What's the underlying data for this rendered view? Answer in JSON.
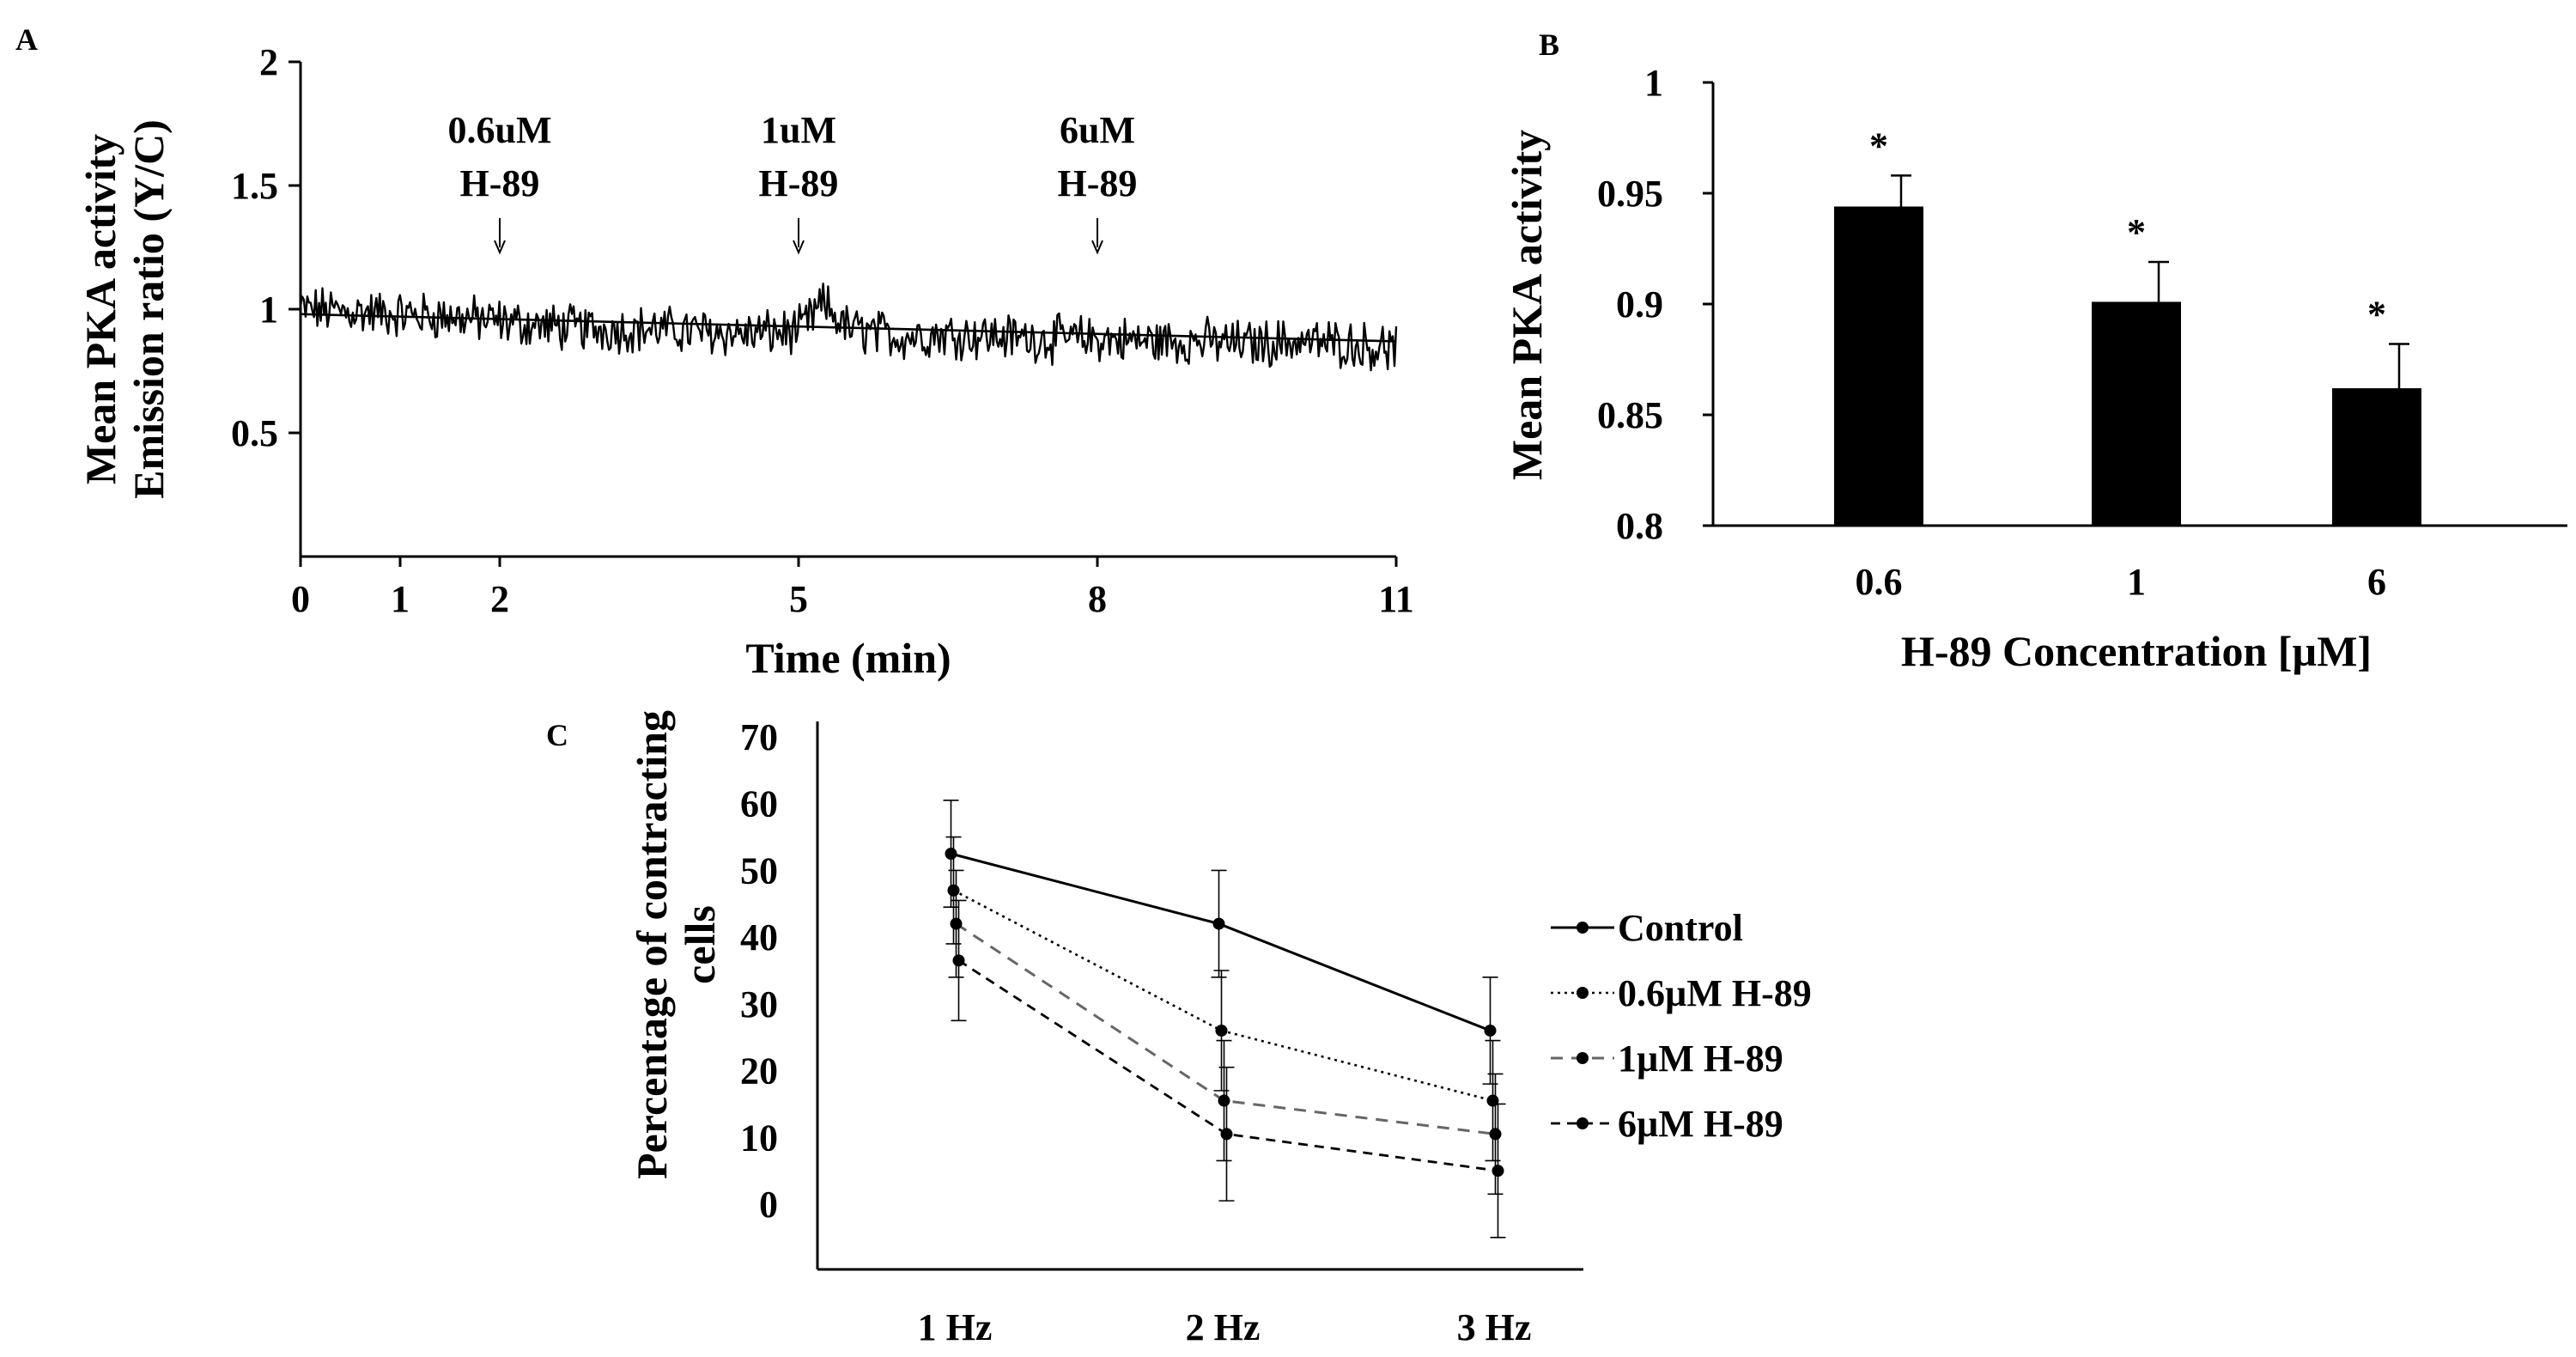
{
  "chart_data": [
    {
      "panel": "A",
      "type": "line",
      "xlabel": "Time (min)",
      "ylabel": [
        "Mean PKA activity",
        "Emission ratio (Y/C)"
      ],
      "xlim": [
        0,
        11
      ],
      "ylim": [
        0,
        2
      ],
      "xticks": [
        0,
        1,
        2,
        5,
        8,
        11
      ],
      "yticks": [
        0.5,
        1,
        1.5,
        2
      ],
      "series": [
        {
          "name": "Emission ratio trace",
          "x": [
            0,
            0.5,
            1,
            1.5,
            2,
            2.5,
            3,
            3.5,
            4,
            4.5,
            5,
            5.25,
            5.5,
            6,
            6.5,
            7,
            7.5,
            8,
            8.5,
            9,
            9.5,
            10,
            10.5,
            11
          ],
          "y": [
            1.0,
            0.99,
            0.98,
            0.97,
            0.95,
            0.93,
            0.92,
            0.92,
            0.91,
            0.9,
            0.91,
            1.02,
            0.92,
            0.89,
            0.9,
            0.89,
            0.88,
            0.88,
            0.87,
            0.87,
            0.86,
            0.87,
            0.86,
            0.84
          ]
        },
        {
          "name": "Trend line",
          "x": [
            0,
            11
          ],
          "y": [
            0.98,
            0.87
          ]
        }
      ],
      "annotations": [
        {
          "x": 2,
          "lines": [
            "0.6uM",
            "H-89"
          ]
        },
        {
          "x": 5,
          "lines": [
            "1uM",
            "H-89"
          ]
        },
        {
          "x": 8,
          "lines": [
            "6uM",
            "H-89"
          ]
        }
      ]
    },
    {
      "panel": "B",
      "type": "bar",
      "xlabel": "H-89 Concentration [µM]",
      "ylabel": "Mean PKA activity",
      "categories": [
        "0.6",
        "1",
        "6"
      ],
      "values": [
        0.944,
        0.901,
        0.862
      ],
      "errors": [
        0.014,
        0.018,
        0.02
      ],
      "significance": [
        "*",
        "*",
        "*"
      ],
      "ylim": [
        0.8,
        1
      ],
      "yticks": [
        "0.8",
        "0.85",
        "0.9",
        "0.95",
        "1"
      ]
    },
    {
      "panel": "C",
      "type": "line",
      "xlabel": "",
      "ylabel": [
        "Percentage of contracting",
        "cells"
      ],
      "categories": [
        "1 Hz",
        "2 Hz",
        "3 Hz"
      ],
      "ylim": [
        -10,
        70
      ],
      "yticks": [
        0,
        10,
        20,
        30,
        40,
        50,
        60,
        70
      ],
      "series": [
        {
          "name": "Control",
          "values": [
            52.5,
            42,
            26
          ],
          "errors": [
            8,
            8,
            8
          ],
          "dash": "solid"
        },
        {
          "name": "0.6µM H-89",
          "values": [
            47,
            26,
            15.5
          ],
          "errors": [
            8,
            9,
            9
          ],
          "dash": "dotted"
        },
        {
          "name": "1µM H-89",
          "values": [
            42,
            15.5,
            10.5
          ],
          "errors": [
            8,
            9,
            9
          ],
          "dash": "dashed"
        },
        {
          "name": "6µM H-89",
          "values": [
            36.5,
            10.5,
            5
          ],
          "errors": [
            9,
            10,
            10
          ],
          "dash": "dashed-dark"
        }
      ],
      "legend_position": "right"
    }
  ]
}
